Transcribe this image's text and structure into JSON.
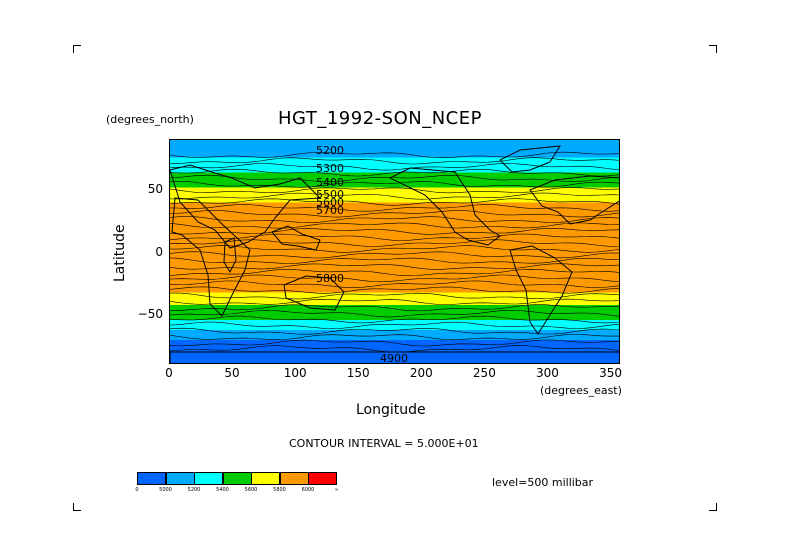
{
  "title": "HGT_1992-SON_NCEP",
  "y_units": "(degrees_north)",
  "x_units": "(degrees_east)",
  "x_label": "Longitude",
  "y_label": "Latitude",
  "contour_interval": "CONTOUR INTERVAL = 5.000E+01",
  "level": "level=500 millibar",
  "x_ticks": [
    "0",
    "50",
    "100",
    "150",
    "200",
    "250",
    "300",
    "350"
  ],
  "y_ticks": [
    "50",
    "0",
    "−50"
  ],
  "colorbar": {
    "colors": [
      "#0066ff",
      "#00aaff",
      "#00ffff",
      "#00cc00",
      "#ffff00",
      "#ff9900",
      "#ff0000"
    ],
    "labels": [
      "0",
      "5000",
      "5200",
      "5400",
      "5600",
      "5800",
      "6000",
      "∞"
    ]
  },
  "contour_labels": [
    "5200",
    "5300",
    "5400",
    "5500",
    "5600",
    "5700",
    "5800",
    "4900"
  ],
  "bands": [
    {
      "color": "#00aaff",
      "from": 90,
      "to": 76
    },
    {
      "color": "#00ffff",
      "from": 76,
      "to": 64
    },
    {
      "color": "#00cc00",
      "from": 64,
      "to": 52
    },
    {
      "color": "#ffff00",
      "from": 52,
      "to": 40
    },
    {
      "color": "#ff9900",
      "from": 40,
      "to": -32
    },
    {
      "color": "#ffff00",
      "from": -32,
      "to": -42
    },
    {
      "color": "#00cc00",
      "from": -42,
      "to": -54
    },
    {
      "color": "#00ffff",
      "from": -54,
      "to": -62
    },
    {
      "color": "#00aaff",
      "from": -62,
      "to": -70
    },
    {
      "color": "#0066ff",
      "from": -70,
      "to": -90
    }
  ]
}
